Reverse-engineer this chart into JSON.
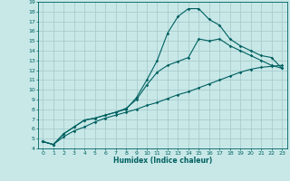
{
  "title": "",
  "xlabel": "Humidex (Indice chaleur)",
  "ylabel": "",
  "bg_color": "#c8e8e8",
  "grid_color": "#aacccc",
  "line_color": "#006060",
  "xlim": [
    -0.5,
    23.5
  ],
  "ylim": [
    4,
    19
  ],
  "xticks": [
    0,
    1,
    2,
    3,
    4,
    5,
    6,
    7,
    8,
    9,
    10,
    11,
    12,
    13,
    14,
    15,
    16,
    17,
    18,
    19,
    20,
    21,
    22,
    23
  ],
  "yticks": [
    4,
    5,
    6,
    7,
    8,
    9,
    10,
    11,
    12,
    13,
    14,
    15,
    16,
    17,
    18,
    19
  ],
  "line1_x": [
    0,
    1,
    2,
    3,
    4,
    5,
    6,
    7,
    8,
    9,
    10,
    11,
    12,
    13,
    14,
    15,
    16,
    17,
    18,
    19,
    20,
    21,
    22,
    23
  ],
  "line1_y": [
    4.7,
    4.4,
    5.2,
    5.8,
    6.2,
    6.7,
    7.1,
    7.4,
    7.7,
    8.0,
    8.4,
    8.7,
    9.1,
    9.5,
    9.8,
    10.2,
    10.6,
    11.0,
    11.4,
    11.8,
    12.1,
    12.3,
    12.4,
    12.5
  ],
  "line2_x": [
    0,
    1,
    2,
    3,
    4,
    5,
    6,
    7,
    8,
    9,
    10,
    11,
    12,
    13,
    14,
    15,
    16,
    17,
    18,
    19,
    20,
    21,
    22,
    23
  ],
  "line2_y": [
    4.7,
    4.4,
    5.5,
    6.2,
    6.9,
    7.1,
    7.4,
    7.7,
    8.0,
    9.2,
    11.0,
    13.0,
    15.8,
    17.5,
    18.3,
    18.3,
    17.2,
    16.6,
    15.2,
    14.5,
    14.0,
    13.5,
    13.3,
    12.2
  ],
  "line3_x": [
    0,
    1,
    2,
    3,
    4,
    5,
    6,
    7,
    8,
    9,
    10,
    11,
    12,
    13,
    14,
    15,
    16,
    17,
    18,
    19,
    20,
    21,
    22,
    23
  ],
  "line3_y": [
    4.7,
    4.4,
    5.5,
    6.2,
    6.9,
    7.1,
    7.4,
    7.7,
    8.1,
    9.0,
    10.5,
    11.8,
    12.5,
    12.9,
    13.3,
    15.2,
    15.0,
    15.2,
    14.5,
    14.0,
    13.5,
    13.0,
    12.5,
    12.2
  ]
}
